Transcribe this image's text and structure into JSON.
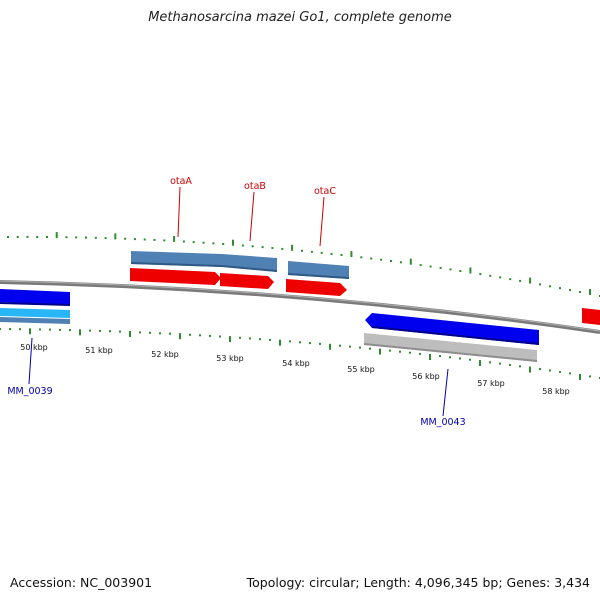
{
  "title": "Methanosarcina mazei Go1, complete genome",
  "footer": {
    "accession": "Accession: NC_003901",
    "summary": "Topology: circular; Length: 4,096,345 bp; Genes: 3,434"
  },
  "colors": {
    "backbone": "#8a8a8a",
    "tick": "#2e8b2e",
    "forward_cds": "#ee0000",
    "reverse_cds": "#0000ee",
    "gene_forward": "#4f81b5",
    "gene_light": "#29b6f6",
    "pseudo_gray": "#b8b8b8",
    "label_red": "#cc0000",
    "label_blue": "#0000aa"
  },
  "scale_labels": [
    "50 kbp",
    "51 kbp",
    "52 kbp",
    "53 kbp",
    "54 kbp",
    "55 kbp",
    "56 kbp",
    "57 kbp",
    "58 kbp"
  ],
  "gene_labels": {
    "otaA": "otaA",
    "otaB": "otaB",
    "otaC": "otaC",
    "mm0039": "MM_0039",
    "mm0043": "MM_0043"
  }
}
